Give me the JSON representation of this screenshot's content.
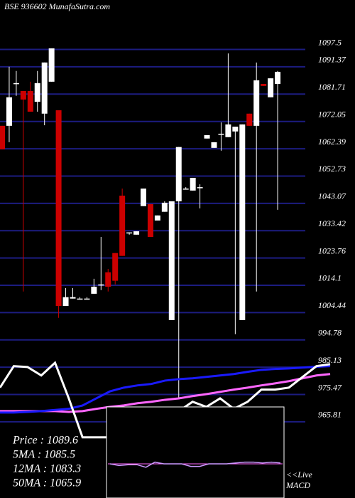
{
  "chart_data": {
    "type": "candlestick",
    "title": "BSE 936602 MunafaSutra.com",
    "ylim": [
      960,
      1115
    ],
    "yticks": [
      1097.5,
      1091.37,
      1081.71,
      1072.05,
      1062.39,
      1052.73,
      1043.07,
      1033.42,
      1023.76,
      1014.1,
      1004.44,
      994.78,
      985.13,
      975.47,
      965.81
    ],
    "grid": true,
    "grid_color": "#1c1c80",
    "up_color": "#ffffff",
    "down_color": "#cc0000",
    "candles": {
      "open": [
        1070.5,
        1070.5,
        1085.6,
        1082.8,
        1082.8,
        1079.0,
        1074.8,
        1086.1,
        1076.0,
        1006.8,
        1009.4,
        1009.4,
        1009.4,
        1011.1,
        1014.4,
        1018.7,
        1025.5,
        1045.8,
        1032.8,
        1032.0,
        1042.1,
        1042.8,
        1037.0,
        1040.1,
        1001.8,
        1043.8,
        1048.3,
        1047.6,
        1048.8,
        1066.0,
        1062.7,
        1067.7,
        1066.5,
        1068.5,
        1001.8,
        1074.8,
        1070.5,
        1085.3,
        1080.6,
        1085.3
      ],
      "high": [
        1070.5,
        1091.4,
        1089.9,
        1082.8,
        1086.1,
        1089.9,
        1092.9,
        1097.9,
        1076.0,
        1013.1,
        1013.1,
        1009.9,
        1009.9,
        1016.4,
        1031.2,
        1019.9,
        1025.5,
        1048.3,
        1032.8,
        1033.2,
        1048.3,
        1042.8,
        1038.8,
        1043.8,
        1043.8,
        1063.0,
        1048.8,
        1052.1,
        1049.8,
        1067.2,
        1064.7,
        1071.7,
        1096.1,
        1070.2,
        1071.0,
        1074.8,
        1092.9,
        1085.3,
        1087.3,
        1089.9
      ],
      "low": [
        1062.2,
        1064.7,
        1081.1,
        1011.9,
        1075.5,
        1075.5,
        1070.7,
        1086.1,
        1002.6,
        1006.8,
        1009.4,
        1009.4,
        1009.4,
        1011.1,
        1012.4,
        1011.9,
        1014.4,
        1024.5,
        1032.0,
        1032.0,
        1042.1,
        1031.2,
        1037.0,
        1040.1,
        1001.8,
        974.1,
        1048.3,
        1047.6,
        1041.3,
        1066.0,
        1062.7,
        1061.7,
        1066.5,
        996.8,
        1001.8,
        1070.5,
        1011.9,
        1084.6,
        1080.6,
        1040.8
      ],
      "close": [
        1062.2,
        1080.6,
        1085.6,
        1079.8,
        1075.5,
        1085.6,
        1092.9,
        1097.9,
        1006.8,
        1009.9,
        1009.9,
        1009.4,
        1009.4,
        1013.6,
        1014.4,
        1013.6,
        1015.7,
        1024.5,
        1032.8,
        1033.2,
        1048.3,
        1031.2,
        1038.8,
        1043.3,
        1043.8,
        1063.0,
        1048.3,
        1052.1,
        1048.8,
        1067.2,
        1064.7,
        1067.7,
        1071.0,
        1070.2,
        1071.0,
        1070.5,
        1086.6,
        1084.6,
        1087.3,
        1089.6
      ]
    },
    "series": [
      {
        "color": "#ff66ff",
        "values": [
          969.6,
          969.6,
          969.6,
          969.6,
          969.6,
          969.3,
          969.6,
          970.4,
          971.1,
          971.6,
          972.4,
          972.9,
          973.6,
          974.1,
          974.9,
          975.6,
          976.4,
          977.2,
          977.9,
          978.7,
          979.4,
          980.2,
          981.2,
          982.2,
          982.7
        ]
      },
      {
        "color": "#1a1aff",
        "values": [
          969.1,
          969.1,
          969.3,
          969.6,
          970.0,
          970.4,
          971.6,
          974.1,
          976.6,
          977.9,
          978.7,
          979.2,
          980.4,
          980.9,
          981.2,
          981.7,
          982.2,
          982.7,
          983.5,
          984.2,
          984.5,
          984.7,
          985.0,
          985.3,
          985.5
        ]
      },
      {
        "color": "#ffffff",
        "values": [
          977.9,
          985.5,
          985.2,
          982.2,
          986.7,
          974.1,
          960.3,
          960.3,
          960.3,
          961.0,
          962.8,
          965.3,
          968.6,
          969.6,
          972.9,
          971.1,
          974.1,
          970.4,
          972.9,
          977.2,
          977.2,
          977.9,
          981.7,
          985.5,
          986.2
        ]
      }
    ],
    "info": [
      "Price   : 1089.6",
      "5MA : 1085.5",
      "12MA : 1083.3",
      "50MA : 1065.9"
    ],
    "macd": {
      "labels": [
        "<<Live",
        "MACD"
      ],
      "color": "#cc99ff",
      "values": [
        0,
        -0.2,
        -0.1,
        -0.1,
        -0.4,
        0.2,
        0,
        0,
        0,
        -0.3,
        -0.3,
        0,
        0,
        0,
        0.1,
        0.2,
        0.2,
        0.1,
        0.2,
        0.1
      ]
    }
  }
}
